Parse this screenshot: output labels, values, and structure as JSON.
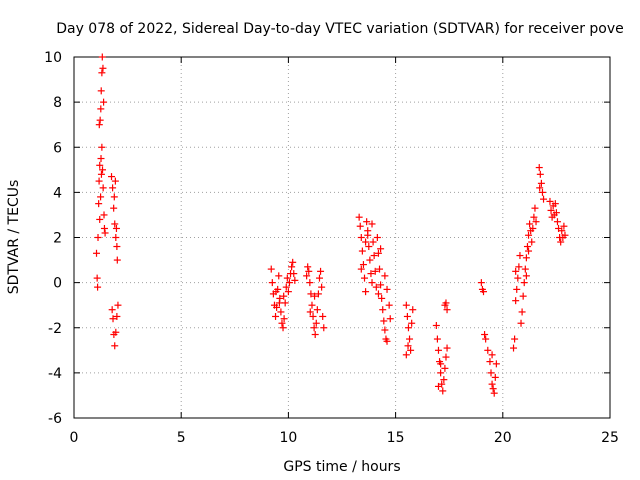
{
  "chart_data": {
    "type": "scatter",
    "title": "Day 078 of 2022, Sidereal Day-to-day VTEC variation (SDTVAR) for receiver pove",
    "xlabel": "GPS time / hours",
    "ylabel": "SDTVAR / TECUs",
    "xlim": [
      0,
      25
    ],
    "ylim": [
      -6,
      10
    ],
    "xticks": [
      0,
      5,
      10,
      15,
      20,
      25
    ],
    "yticks": [
      -6,
      -4,
      -2,
      0,
      2,
      4,
      6,
      8,
      10
    ],
    "grid": true,
    "marker": "plus",
    "color": "#ff0000",
    "series": [
      {
        "name": "SDTVAR",
        "points": [
          [
            1.05,
            1.3
          ],
          [
            1.08,
            0.2
          ],
          [
            1.1,
            -0.2
          ],
          [
            1.12,
            2.0
          ],
          [
            1.15,
            3.5
          ],
          [
            1.17,
            4.5
          ],
          [
            1.2,
            5.2
          ],
          [
            1.22,
            7.2
          ],
          [
            1.25,
            7.7
          ],
          [
            1.27,
            8.5
          ],
          [
            1.3,
            9.3
          ],
          [
            1.32,
            10.0
          ],
          [
            1.35,
            9.5
          ],
          [
            1.38,
            8.0
          ],
          [
            1.3,
            6.0
          ],
          [
            1.33,
            5.0
          ],
          [
            1.36,
            4.2
          ],
          [
            1.4,
            3.0
          ],
          [
            1.42,
            2.4
          ],
          [
            1.28,
            4.8
          ],
          [
            1.24,
            3.8
          ],
          [
            1.2,
            2.8
          ],
          [
            1.45,
            2.2
          ],
          [
            1.18,
            7.0
          ],
          [
            1.26,
            5.5
          ],
          [
            1.75,
            4.7
          ],
          [
            1.8,
            4.2
          ],
          [
            1.85,
            3.3
          ],
          [
            1.9,
            2.6
          ],
          [
            1.95,
            2.0
          ],
          [
            2.0,
            1.6
          ],
          [
            2.02,
            1.0
          ],
          [
            1.88,
            3.8
          ],
          [
            1.93,
            4.5
          ],
          [
            1.98,
            2.4
          ],
          [
            1.78,
            -1.2
          ],
          [
            1.82,
            -1.6
          ],
          [
            1.86,
            -2.3
          ],
          [
            1.9,
            -2.8
          ],
          [
            1.95,
            -2.2
          ],
          [
            2.0,
            -1.5
          ],
          [
            2.05,
            -1.0
          ],
          [
            9.2,
            0.6
          ],
          [
            9.25,
            0.0
          ],
          [
            9.3,
            -0.5
          ],
          [
            9.35,
            -1.0
          ],
          [
            9.4,
            -1.5
          ],
          [
            9.45,
            -1.1
          ],
          [
            9.5,
            -0.3
          ],
          [
            9.55,
            0.3
          ],
          [
            9.6,
            -0.7
          ],
          [
            9.65,
            -1.3
          ],
          [
            9.7,
            -1.8
          ],
          [
            9.75,
            -2.0
          ],
          [
            9.8,
            -1.6
          ],
          [
            9.85,
            -0.9
          ],
          [
            9.9,
            -0.2
          ],
          [
            9.95,
            0.2
          ],
          [
            10.0,
            -0.4
          ],
          [
            10.05,
            0.0
          ],
          [
            10.1,
            0.4
          ],
          [
            10.15,
            0.7
          ],
          [
            10.2,
            0.9
          ],
          [
            10.25,
            0.4
          ],
          [
            10.3,
            0.1
          ],
          [
            9.42,
            -0.4
          ],
          [
            9.58,
            -0.9
          ],
          [
            9.78,
            -0.6
          ],
          [
            10.85,
            0.3
          ],
          [
            10.9,
            0.7
          ],
          [
            10.95,
            0.5
          ],
          [
            11.0,
            0.0
          ],
          [
            11.05,
            -0.5
          ],
          [
            11.1,
            -1.0
          ],
          [
            11.15,
            -1.5
          ],
          [
            11.2,
            -2.0
          ],
          [
            11.25,
            -2.3
          ],
          [
            11.3,
            -1.8
          ],
          [
            11.35,
            -1.2
          ],
          [
            11.4,
            -0.5
          ],
          [
            11.45,
            0.2
          ],
          [
            11.5,
            0.5
          ],
          [
            11.55,
            -0.2
          ],
          [
            11.6,
            -1.5
          ],
          [
            11.65,
            -2.0
          ],
          [
            11.02,
            -1.3
          ],
          [
            11.22,
            -0.6
          ],
          [
            13.3,
            2.9
          ],
          [
            13.35,
            2.5
          ],
          [
            13.4,
            2.0
          ],
          [
            13.45,
            1.4
          ],
          [
            13.5,
            0.8
          ],
          [
            13.55,
            0.2
          ],
          [
            13.6,
            -0.4
          ],
          [
            13.65,
            2.7
          ],
          [
            13.7,
            2.3
          ],
          [
            13.75,
            1.6
          ],
          [
            13.8,
            1.0
          ],
          [
            13.85,
            0.4
          ],
          [
            13.9,
            2.6
          ],
          [
            13.95,
            1.8
          ],
          [
            14.0,
            1.2
          ],
          [
            14.05,
            0.5
          ],
          [
            14.1,
            -0.2
          ],
          [
            14.15,
            2.0
          ],
          [
            14.2,
            1.3
          ],
          [
            14.25,
            0.6
          ],
          [
            14.3,
            -0.1
          ],
          [
            14.35,
            -0.7
          ],
          [
            14.4,
            -1.2
          ],
          [
            14.45,
            -1.7
          ],
          [
            14.5,
            -2.1
          ],
          [
            14.55,
            -2.5
          ],
          [
            14.6,
            -2.6
          ],
          [
            14.5,
            0.3
          ],
          [
            14.6,
            -0.3
          ],
          [
            14.7,
            -1.0
          ],
          [
            14.75,
            -1.6
          ],
          [
            13.6,
            1.8
          ],
          [
            13.9,
            0.0
          ],
          [
            14.2,
            -0.5
          ],
          [
            13.4,
            0.6
          ],
          [
            14.3,
            1.5
          ],
          [
            13.7,
            2.1
          ],
          [
            15.5,
            -1.0
          ],
          [
            15.55,
            -1.5
          ],
          [
            15.6,
            -2.0
          ],
          [
            15.65,
            -2.5
          ],
          [
            15.7,
            -3.0
          ],
          [
            15.5,
            -3.2
          ],
          [
            15.75,
            -1.8
          ],
          [
            15.8,
            -1.2
          ],
          [
            15.58,
            -2.8
          ],
          [
            16.9,
            -1.9
          ],
          [
            16.95,
            -2.5
          ],
          [
            17.0,
            -3.0
          ],
          [
            17.05,
            -3.5
          ],
          [
            17.1,
            -4.0
          ],
          [
            17.15,
            -4.5
          ],
          [
            17.2,
            -4.8
          ],
          [
            17.25,
            -4.3
          ],
          [
            17.3,
            -3.8
          ],
          [
            17.35,
            -3.3
          ],
          [
            17.4,
            -2.9
          ],
          [
            17.0,
            -4.6
          ],
          [
            17.3,
            -1.0
          ],
          [
            17.35,
            -0.9
          ],
          [
            17.4,
            -1.2
          ],
          [
            17.1,
            -3.6
          ],
          [
            19.0,
            0.0
          ],
          [
            19.05,
            -0.3
          ],
          [
            19.1,
            -0.4
          ],
          [
            19.15,
            -2.3
          ],
          [
            19.2,
            -2.5
          ],
          [
            19.3,
            -3.0
          ],
          [
            19.4,
            -3.5
          ],
          [
            19.45,
            -4.0
          ],
          [
            19.5,
            -4.5
          ],
          [
            19.55,
            -4.7
          ],
          [
            19.6,
            -4.9
          ],
          [
            19.65,
            -4.2
          ],
          [
            19.7,
            -3.6
          ],
          [
            19.5,
            -3.2
          ],
          [
            20.5,
            -2.9
          ],
          [
            20.55,
            -2.5
          ],
          [
            20.6,
            -0.8
          ],
          [
            20.65,
            -0.3
          ],
          [
            20.7,
            0.2
          ],
          [
            20.75,
            0.7
          ],
          [
            20.8,
            1.2
          ],
          [
            20.85,
            -1.8
          ],
          [
            20.9,
            -1.3
          ],
          [
            20.95,
            -0.6
          ],
          [
            21.0,
            0.0
          ],
          [
            21.05,
            0.6
          ],
          [
            21.1,
            1.1
          ],
          [
            21.15,
            1.6
          ],
          [
            21.2,
            2.1
          ],
          [
            21.25,
            2.6
          ],
          [
            21.3,
            2.3
          ],
          [
            21.35,
            1.8
          ],
          [
            21.4,
            2.4
          ],
          [
            21.45,
            2.9
          ],
          [
            21.5,
            3.3
          ],
          [
            21.55,
            2.7
          ],
          [
            21.1,
            0.3
          ],
          [
            21.2,
            1.4
          ],
          [
            20.6,
            0.5
          ],
          [
            21.7,
            5.1
          ],
          [
            21.75,
            4.8
          ],
          [
            21.8,
            4.4
          ],
          [
            21.85,
            4.0
          ],
          [
            21.9,
            3.7
          ],
          [
            21.72,
            4.2
          ],
          [
            22.2,
            3.6
          ],
          [
            22.25,
            3.2
          ],
          [
            22.3,
            2.9
          ],
          [
            22.35,
            3.4
          ],
          [
            22.4,
            3.0
          ],
          [
            22.45,
            3.5
          ],
          [
            22.5,
            3.1
          ],
          [
            22.55,
            2.7
          ],
          [
            22.6,
            2.4
          ],
          [
            22.65,
            2.0
          ],
          [
            22.7,
            1.8
          ],
          [
            22.75,
            2.3
          ],
          [
            22.8,
            2.0
          ],
          [
            22.85,
            2.5
          ],
          [
            22.9,
            2.1
          ]
        ]
      }
    ]
  }
}
